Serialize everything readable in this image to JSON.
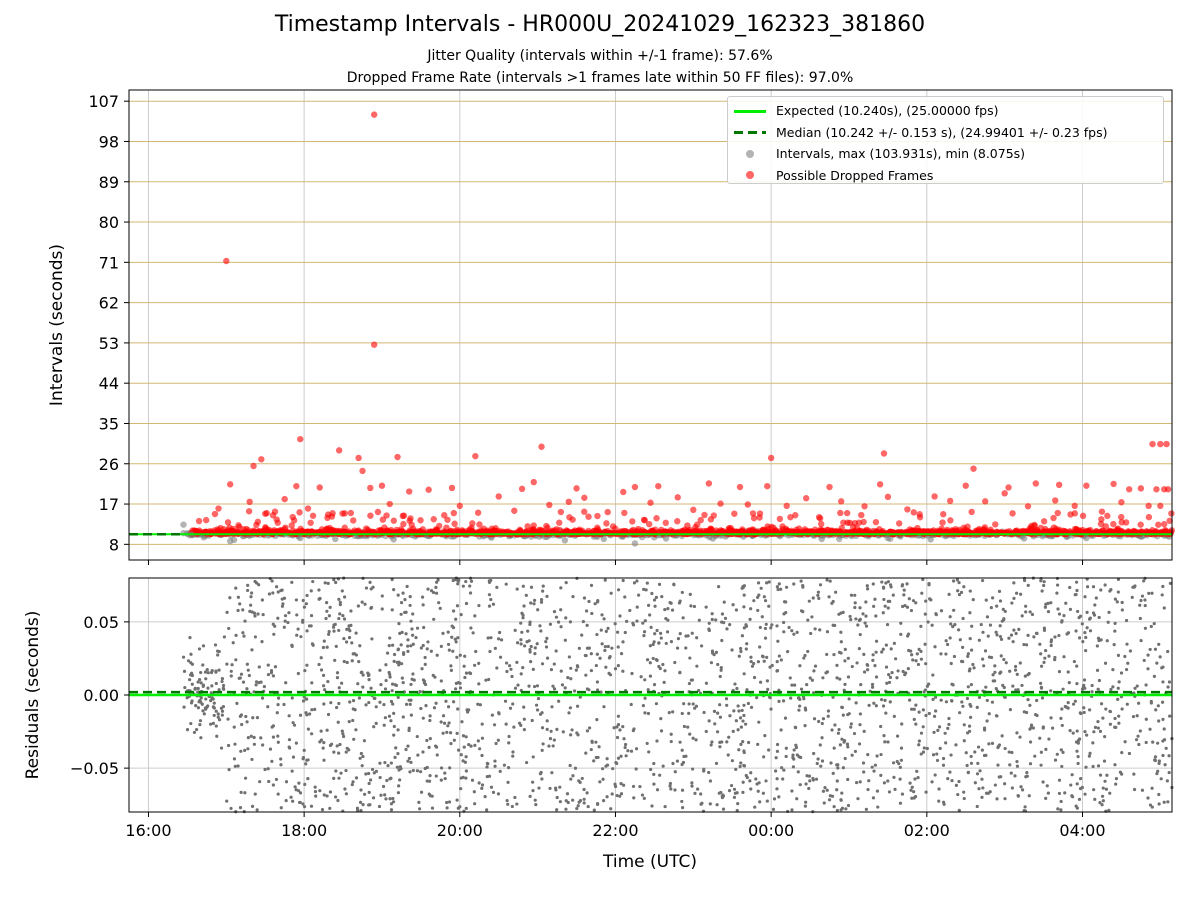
{
  "header": {
    "title": "Timestamp Intervals - HR000U_20241029_162323_381860",
    "subtitle_jitter": "Jitter Quality (intervals within +/-1 frame): 57.6%",
    "subtitle_dropped": "Dropped Frame Rate (intervals >1 frames late within 50 FF files): 97.0%"
  },
  "colors": {
    "expected": "#00ee00",
    "median": "#007700",
    "intervals": "#808080",
    "dropped": "#ff0000",
    "hgrid_top": "#d4b870",
    "grid": "#cccccc",
    "residuals": "#707070"
  },
  "legend": {
    "placement": "top-right",
    "expected": "Expected (10.240s), (25.00000 fps)",
    "median": "Median (10.242 +/- 0.153 s), (24.99401 +/- 0.23 fps)",
    "intervals": "Intervals, max (103.931s), min (8.075s)",
    "dropped": "Possible Dropped Frames"
  },
  "chart_data": [
    {
      "type": "scatter",
      "ylabel": "Intervals (seconds)",
      "x_unit": "hours since 16:00 UTC",
      "xlim": [
        -0.25,
        13.15
      ],
      "ylim": [
        4.5,
        109.5
      ],
      "y_ticks": [
        "8",
        "17",
        "26",
        "35",
        "44",
        "53",
        "62",
        "71",
        "80",
        "89",
        "98",
        "107"
      ],
      "grid": true,
      "expected_interval": 10.24,
      "median_interval": 10.242,
      "data_start": 0.45,
      "data_end": 13.15,
      "series": [
        {
          "name": "Possible Dropped Frames",
          "points": [
            [
              1.0,
              71.3
            ],
            [
              2.9,
              104.0
            ],
            [
              2.9,
              52.6
            ],
            [
              1.95,
              31.5
            ],
            [
              2.45,
              29.0
            ],
            [
              2.7,
              27.3
            ],
            [
              1.45,
              27.0
            ],
            [
              3.2,
              27.5
            ],
            [
              4.2,
              27.7
            ],
            [
              5.05,
              29.8
            ],
            [
              8.0,
              27.3
            ],
            [
              9.45,
              28.3
            ],
            [
              10.6,
              24.9
            ],
            [
              12.4,
              21.5
            ],
            [
              12.75,
              20.5
            ],
            [
              1.35,
              25.5
            ],
            [
              2.75,
              24.4
            ],
            [
              1.05,
              21.4
            ],
            [
              1.9,
              21.0
            ],
            [
              2.2,
              20.7
            ],
            [
              2.85,
              20.6
            ],
            [
              3.0,
              21.1
            ],
            [
              3.6,
              20.2
            ],
            [
              3.9,
              20.6
            ],
            [
              4.8,
              20.4
            ],
            [
              4.95,
              21.9
            ],
            [
              5.5,
              20.5
            ],
            [
              6.25,
              20.8
            ],
            [
              6.55,
              21.0
            ],
            [
              7.2,
              21.6
            ],
            [
              7.6,
              20.8
            ],
            [
              7.95,
              21.0
            ],
            [
              8.75,
              20.8
            ],
            [
              9.4,
              21.4
            ],
            [
              10.5,
              21.1
            ],
            [
              11.05,
              20.7
            ],
            [
              11.4,
              21.6
            ],
            [
              11.7,
              21.3
            ],
            [
              12.05,
              21.1
            ],
            [
              12.6,
              20.3
            ],
            [
              13.1,
              20.3
            ],
            [
              0.65,
              13.2
            ],
            [
              0.9,
              16.0
            ],
            [
              1.3,
              17.5
            ],
            [
              1.6,
              14.5
            ],
            [
              1.75,
              18.1
            ],
            [
              2.05,
              16.0
            ],
            [
              2.6,
              15.0
            ],
            [
              3.1,
              17.0
            ],
            [
              3.35,
              19.8
            ],
            [
              3.8,
              14.5
            ],
            [
              4.0,
              16.6
            ],
            [
              4.5,
              18.7
            ],
            [
              4.7,
              15.5
            ],
            [
              5.15,
              16.8
            ],
            [
              5.4,
              17.5
            ],
            [
              5.6,
              18.4
            ],
            [
              5.9,
              15.2
            ],
            [
              6.1,
              19.7
            ],
            [
              6.45,
              17.3
            ],
            [
              6.8,
              18.5
            ],
            [
              7.0,
              15.7
            ],
            [
              7.35,
              17.1
            ],
            [
              7.7,
              16.9
            ],
            [
              8.2,
              16.6
            ],
            [
              8.45,
              18.3
            ],
            [
              8.9,
              17.6
            ],
            [
              9.2,
              16.5
            ],
            [
              9.5,
              18.6
            ],
            [
              9.75,
              15.8
            ],
            [
              10.1,
              18.7
            ],
            [
              10.3,
              17.7
            ],
            [
              10.75,
              17.6
            ],
            [
              11.0,
              19.4
            ],
            [
              11.3,
              16.5
            ],
            [
              11.65,
              17.8
            ],
            [
              11.9,
              16.6
            ],
            [
              12.25,
              15.3
            ],
            [
              12.5,
              17.4
            ],
            [
              12.85,
              16.6
            ],
            [
              13.0,
              16.6
            ],
            [
              12.9,
              30.4
            ],
            [
              13.0,
              30.4
            ],
            [
              13.08,
              30.4
            ],
            [
              12.95,
              20.3
            ],
            [
              13.05,
              20.3
            ]
          ]
        },
        {
          "name": "Intervals, max (103.931s), min (8.075s)",
          "points": [
            [
              0.45,
              12.4
            ],
            [
              0.45,
              10.5
            ],
            [
              0.55,
              10.2
            ],
            [
              1.05,
              8.7
            ],
            [
              1.1,
              9.0
            ],
            [
              1.95,
              9.4
            ],
            [
              2.4,
              9.2
            ],
            [
              3.15,
              9.1
            ],
            [
              5.35,
              8.9
            ],
            [
              5.85,
              9.2
            ],
            [
              6.25,
              8.2
            ],
            [
              6.65,
              9.3
            ],
            [
              7.25,
              9.3
            ],
            [
              8.65,
              9.2
            ],
            [
              9.5,
              9.4
            ],
            [
              10.05,
              9.1
            ],
            [
              11.25,
              9.3
            ],
            [
              12.05,
              9.4
            ]
          ]
        }
      ]
    },
    {
      "type": "scatter",
      "ylabel": "Residuals (seconds)",
      "xlabel": "Time (UTC)",
      "x_unit": "hours since 16:00 UTC",
      "xlim": [
        -0.25,
        13.15
      ],
      "ylim": [
        -0.08,
        0.08
      ],
      "y_ticks": [
        "0.05",
        "0.00",
        "−0.05"
      ],
      "x_ticks": [
        "16:00",
        "18:00",
        "20:00",
        "22:00",
        "00:00",
        "02:00",
        "04:00"
      ],
      "grid": true,
      "expected_residual": 0.0,
      "median_residual": 0.002,
      "residual_band": [
        -0.08,
        0.08
      ],
      "data_start": 0.45,
      "data_end": 13.15
    }
  ]
}
